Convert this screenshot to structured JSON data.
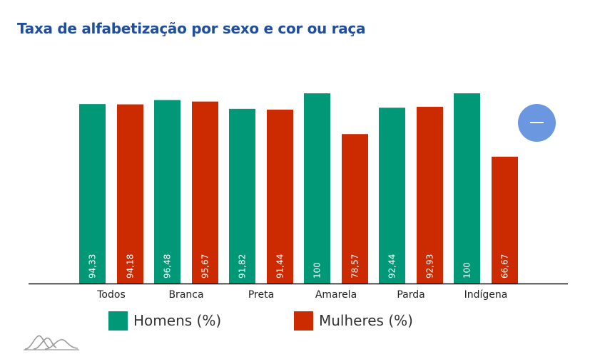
{
  "title": "Taxa de alfabetização por sexo e cor ou raça",
  "colors": {
    "homens": "#009877",
    "mulheres": "#cc2a00",
    "title": "#1f4e9c",
    "fab": "#6a97e0"
  },
  "controls": {
    "collapse_icon": "minus-icon"
  },
  "legend": [
    {
      "label": "Homens (%)",
      "color": "#009877"
    },
    {
      "label": "Mulheres (%)",
      "color": "#cc2a00"
    }
  ],
  "chart_data": {
    "type": "bar",
    "categories": [
      "Todos",
      "Branca",
      "Preta",
      "Amarela",
      "Parda",
      "Indígena"
    ],
    "series": [
      {
        "name": "Homens (%)",
        "values": [
          94.33,
          96.48,
          91.82,
          100,
          92.44,
          100
        ]
      },
      {
        "name": "Mulheres (%)",
        "values": [
          94.18,
          95.67,
          91.44,
          78.57,
          92.93,
          66.67
        ]
      }
    ],
    "value_labels": [
      [
        "94,33",
        "96,48",
        "91,82",
        "100",
        "92,44",
        "100"
      ],
      [
        "94,18",
        "95,67",
        "91,44",
        "78,57",
        "92,93",
        "66,67"
      ]
    ],
    "ylim": [
      0,
      100
    ],
    "grid": false,
    "legend_position": "bottom"
  }
}
